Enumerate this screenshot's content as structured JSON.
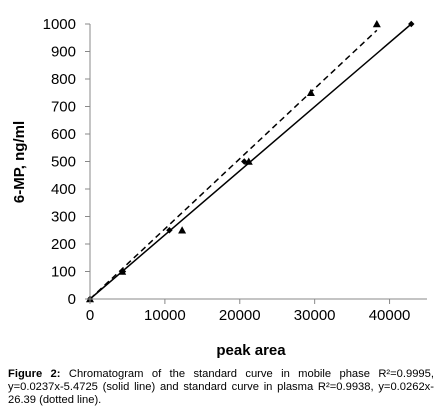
{
  "chart_data": {
    "type": "scatter",
    "xlabel": "peak area",
    "ylabel": "6-MP, ng/ml",
    "xlim": [
      0,
      45000
    ],
    "ylim": [
      0,
      1000
    ],
    "x_ticks": [
      0,
      10000,
      20000,
      30000,
      40000
    ],
    "y_ticks": [
      0,
      100,
      200,
      300,
      400,
      500,
      600,
      700,
      800,
      900,
      1000
    ],
    "grid": false,
    "legend": "none",
    "series": [
      {
        "marker": "diamond",
        "fit": "solid",
        "color": "#000000",
        "fit_line": {
          "slope": 0.0237,
          "intercept": -5.4725
        },
        "x": [
          0,
          4400,
          10600,
          20600,
          42900
        ],
        "y": [
          0,
          100,
          250,
          500,
          1000
        ]
      },
      {
        "marker": "triangle",
        "fit": "dotted",
        "color": "#000000",
        "fit_line": {
          "slope": 0.0262,
          "intercept": -26.39
        },
        "x": [
          0,
          4300,
          12300,
          21200,
          29500,
          38300
        ],
        "y": [
          0,
          100,
          250,
          500,
          750,
          1000
        ]
      }
    ]
  },
  "caption": {
    "label": "Figure 2:",
    "text": " Chromatogram of the standard curve in mobile phase R²=0.9995, y=0.0237x-5.4725 (solid line) and standard curve in plasma R²=0.9938, y=0.0262x-26.39 (dotted line)."
  }
}
